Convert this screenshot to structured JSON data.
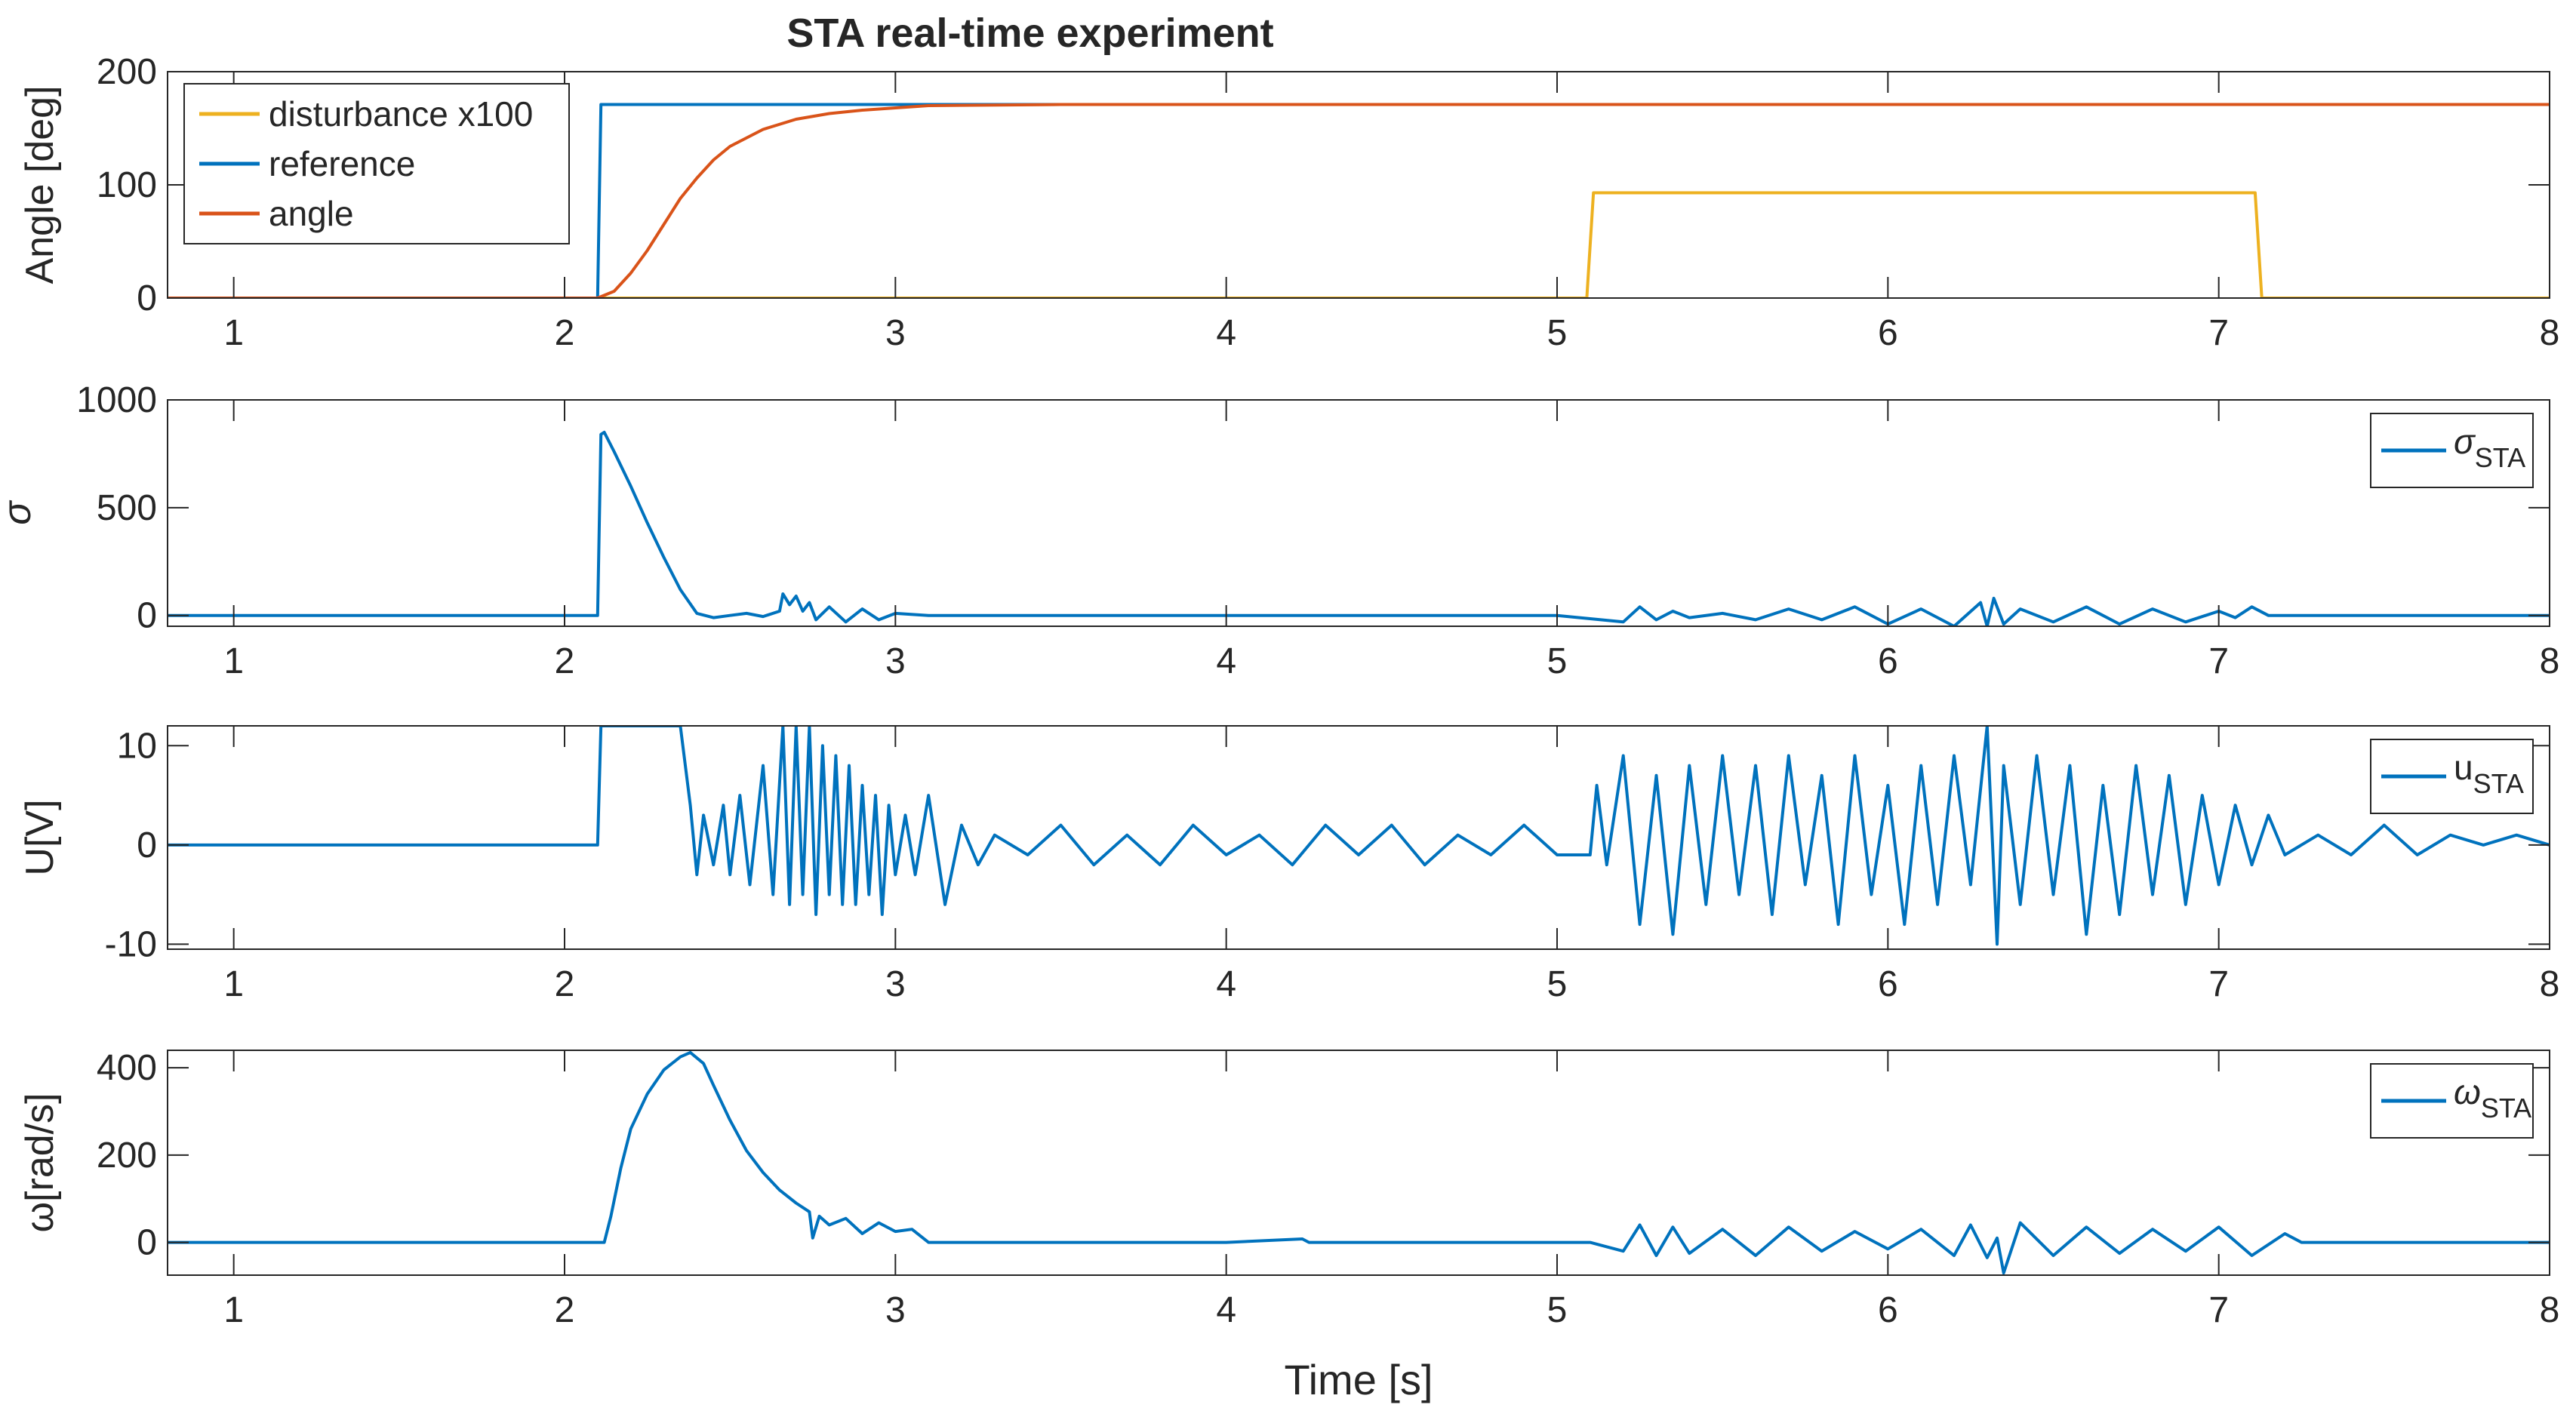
{
  "figure_title": "STA real-time experiment",
  "xlabel": "Time [s]",
  "colors": {
    "disturbance": "#EDB120",
    "reference": "#0072BD",
    "angle": "#D95319",
    "signal": "#0072BD"
  },
  "chart_data": [
    {
      "id": "angle",
      "type": "line",
      "title": "STA real-time experiment",
      "ylabel": "Angle [deg]",
      "xlim": [
        0.8,
        8
      ],
      "ylim": [
        0,
        200
      ],
      "xticks": [
        1,
        2,
        3,
        4,
        5,
        6,
        7,
        8
      ],
      "yticks": [
        0,
        100,
        200
      ],
      "ytick_labels": [
        "0",
        "100",
        "200"
      ],
      "legend_location": "top-left",
      "series": [
        {
          "name": "disturbance x100",
          "color": "#EDB120",
          "x": [
            0.8,
            5.09,
            5.11,
            7.11,
            7.13,
            8.0
          ],
          "y": [
            0,
            0,
            93,
            93,
            0,
            0
          ]
        },
        {
          "name": "reference",
          "color": "#0072BD",
          "x": [
            0.8,
            2.1,
            2.11,
            8.0
          ],
          "y": [
            0,
            0,
            171,
            171
          ]
        },
        {
          "name": "angle",
          "color": "#D95319",
          "x": [
            0.8,
            2.1,
            2.15,
            2.2,
            2.25,
            2.3,
            2.35,
            2.4,
            2.45,
            2.5,
            2.6,
            2.7,
            2.8,
            2.9,
            3.0,
            3.1,
            3.5,
            5.2,
            6.0,
            7.0,
            8.0
          ],
          "y": [
            0,
            0,
            6,
            22,
            42,
            65,
            88,
            106,
            122,
            134,
            149,
            158,
            163,
            166,
            168,
            170,
            171,
            171,
            171,
            171,
            171
          ]
        }
      ]
    },
    {
      "id": "sigma",
      "type": "line",
      "ylabel": "σ",
      "xlim": [
        0.8,
        8
      ],
      "ylim": [
        -50,
        1000
      ],
      "xticks": [
        1,
        2,
        3,
        4,
        5,
        6,
        7,
        8
      ],
      "yticks": [
        0,
        500,
        1000
      ],
      "ytick_labels": [
        "0",
        "500",
        "1000"
      ],
      "legend_location": "top-right",
      "series": [
        {
          "name": "σ",
          "name_subscript": "STA",
          "color": "#0072BD",
          "x": [
            0.8,
            2.1,
            2.11,
            2.12,
            2.15,
            2.2,
            2.25,
            2.3,
            2.35,
            2.4,
            2.45,
            2.5,
            2.55,
            2.6,
            2.65,
            2.66,
            2.68,
            2.7,
            2.72,
            2.74,
            2.76,
            2.8,
            2.85,
            2.9,
            2.95,
            3.0,
            3.1,
            3.5,
            4.0,
            5.0,
            5.2,
            5.25,
            5.3,
            5.35,
            5.4,
            5.5,
            5.6,
            5.7,
            5.8,
            5.9,
            6.0,
            6.1,
            6.2,
            6.28,
            6.3,
            6.32,
            6.35,
            6.4,
            6.5,
            6.6,
            6.7,
            6.8,
            6.9,
            7.0,
            7.05,
            7.1,
            7.15,
            7.2,
            8.0
          ],
          "y": [
            0,
            0,
            840,
            850,
            760,
            600,
            430,
            270,
            120,
            10,
            -10,
            0,
            10,
            -5,
            20,
            100,
            50,
            90,
            20,
            60,
            -20,
            40,
            -30,
            30,
            -20,
            10,
            0,
            0,
            0,
            0,
            -30,
            40,
            -20,
            20,
            -10,
            10,
            -20,
            30,
            -20,
            40,
            -40,
            30,
            -50,
            60,
            -50,
            80,
            -40,
            30,
            -30,
            40,
            -40,
            30,
            -30,
            20,
            -10,
            40,
            0,
            0,
            0
          ]
        }
      ]
    },
    {
      "id": "u",
      "type": "line",
      "ylabel": "U[V]",
      "xlim": [
        0.8,
        8
      ],
      "ylim": [
        -10.5,
        12
      ],
      "xticks": [
        1,
        2,
        3,
        4,
        5,
        6,
        7,
        8
      ],
      "yticks": [
        -10,
        0,
        10
      ],
      "ytick_labels": [
        "-10",
        "0",
        "10"
      ],
      "legend_location": "top-right",
      "series": [
        {
          "name": "u",
          "name_subscript": "STA",
          "color": "#0072BD",
          "x": [
            0.8,
            2.1,
            2.11,
            2.35,
            2.38,
            2.4,
            2.42,
            2.45,
            2.48,
            2.5,
            2.53,
            2.56,
            2.6,
            2.63,
            2.66,
            2.68,
            2.7,
            2.72,
            2.74,
            2.76,
            2.78,
            2.8,
            2.82,
            2.84,
            2.86,
            2.88,
            2.9,
            2.92,
            2.94,
            2.96,
            2.98,
            3.0,
            3.03,
            3.06,
            3.1,
            3.15,
            3.2,
            3.25,
            3.3,
            3.4,
            3.5,
            3.6,
            3.7,
            3.8,
            3.9,
            4.0,
            4.1,
            4.2,
            4.3,
            4.4,
            4.5,
            4.6,
            4.7,
            4.8,
            4.9,
            5.0,
            5.1,
            5.12,
            5.15,
            5.2,
            5.25,
            5.3,
            5.35,
            5.4,
            5.45,
            5.5,
            5.55,
            5.6,
            5.65,
            5.7,
            5.75,
            5.8,
            5.85,
            5.9,
            5.95,
            6.0,
            6.05,
            6.1,
            6.15,
            6.2,
            6.25,
            6.3,
            6.33,
            6.35,
            6.4,
            6.45,
            6.5,
            6.55,
            6.6,
            6.65,
            6.7,
            6.75,
            6.8,
            6.85,
            6.9,
            6.95,
            7.0,
            7.05,
            7.1,
            7.15,
            7.2,
            7.3,
            7.4,
            7.5,
            7.6,
            7.7,
            7.8,
            7.9,
            8.0
          ],
          "y": [
            0,
            0,
            12,
            12,
            4,
            -3,
            3,
            -2,
            4,
            -3,
            5,
            -4,
            8,
            -5,
            12,
            -6,
            12,
            -5,
            12,
            -7,
            10,
            -5,
            9,
            -6,
            8,
            -6,
            6,
            -5,
            5,
            -7,
            4,
            -3,
            3,
            -3,
            5,
            -6,
            2,
            -2,
            1,
            -1,
            2,
            -2,
            1,
            -2,
            2,
            -1,
            1,
            -2,
            2,
            -1,
            2,
            -2,
            1,
            -1,
            2,
            -1,
            -1,
            6,
            -2,
            9,
            -8,
            7,
            -9,
            8,
            -6,
            9,
            -5,
            8,
            -7,
            9,
            -4,
            7,
            -8,
            9,
            -5,
            6,
            -8,
            8,
            -6,
            9,
            -4,
            12,
            -10,
            8,
            -6,
            9,
            -5,
            8,
            -9,
            6,
            -7,
            8,
            -5,
            7,
            -6,
            5,
            -4,
            4,
            -2,
            3,
            -1,
            1,
            -1,
            2,
            -1,
            1,
            0,
            1,
            0
          ]
        }
      ]
    },
    {
      "id": "omega",
      "type": "line",
      "ylabel": "ω[rad/s]",
      "xlim": [
        0.8,
        8
      ],
      "ylim": [
        -75,
        440
      ],
      "xticks": [
        1,
        2,
        3,
        4,
        5,
        6,
        7,
        8
      ],
      "yticks": [
        0,
        200,
        400
      ],
      "ytick_labels": [
        "0",
        "200",
        "400"
      ],
      "legend_location": "top-right",
      "series": [
        {
          "name": "ω",
          "name_subscript": "STA",
          "color": "#0072BD",
          "x": [
            0.8,
            2.12,
            2.14,
            2.17,
            2.2,
            2.25,
            2.3,
            2.35,
            2.38,
            2.42,
            2.45,
            2.5,
            2.55,
            2.6,
            2.65,
            2.7,
            2.74,
            2.75,
            2.77,
            2.8,
            2.85,
            2.9,
            2.95,
            3.0,
            3.05,
            3.1,
            3.2,
            4.0,
            4.23,
            4.25,
            4.4,
            5.0,
            5.1,
            5.2,
            5.25,
            5.3,
            5.35,
            5.4,
            5.5,
            5.6,
            5.7,
            5.8,
            5.9,
            6.0,
            6.1,
            6.2,
            6.25,
            6.3,
            6.33,
            6.35,
            6.4,
            6.5,
            6.6,
            6.7,
            6.8,
            6.9,
            7.0,
            7.1,
            7.2,
            7.25,
            8.0
          ],
          "y": [
            0,
            0,
            60,
            170,
            260,
            340,
            395,
            425,
            435,
            410,
            360,
            280,
            210,
            160,
            120,
            90,
            70,
            10,
            60,
            40,
            55,
            20,
            45,
            25,
            30,
            0,
            0,
            0,
            8,
            0,
            0,
            0,
            0,
            -20,
            40,
            -30,
            35,
            -25,
            30,
            -30,
            35,
            -20,
            25,
            -15,
            30,
            -30,
            40,
            -35,
            10,
            -70,
            45,
            -30,
            35,
            -25,
            30,
            -20,
            35,
            -30,
            20,
            0,
            0
          ]
        }
      ]
    }
  ]
}
